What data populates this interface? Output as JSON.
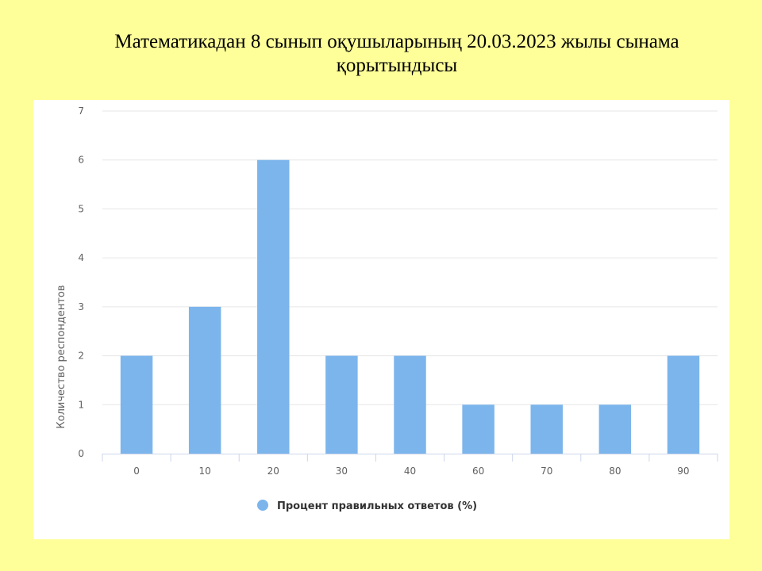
{
  "slide": {
    "title_line1": "Математикадан 8 сынып оқушыларының 20.03.2023 жылы сынама",
    "title_line2": "қорытындысы"
  },
  "chart_data": {
    "type": "bar",
    "categories": [
      "0",
      "10",
      "20",
      "30",
      "40",
      "60",
      "70",
      "80",
      "90"
    ],
    "series": [
      {
        "name": "Процент правильных ответов (%)",
        "values": [
          2,
          3,
          6,
          2,
          2,
          1,
          1,
          1,
          2
        ],
        "color": "#7cb5ec"
      }
    ],
    "ylabel": "Количество респондентов",
    "xlabel": "",
    "ylim": [
      0,
      7
    ],
    "yticks": [
      0,
      1,
      2,
      3,
      4,
      5,
      6,
      7
    ],
    "grid": true,
    "legend": "bottom-center"
  }
}
